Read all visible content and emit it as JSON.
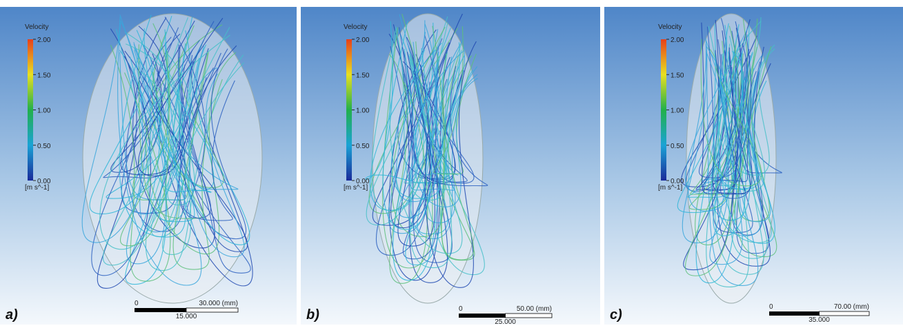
{
  "panels": [
    {
      "label": "a)",
      "legend": {
        "title": "Velocity",
        "ticks": [
          "2.00",
          "1.50",
          "1.00",
          "0.50",
          "0.00"
        ],
        "unit": "[m s^-1]"
      },
      "scale_bar": {
        "start": "0",
        "end": "30.000 (mm)",
        "mid": "15.000"
      }
    },
    {
      "label": "b)",
      "legend": {
        "title": "Velocity",
        "ticks": [
          "2.00",
          "1.50",
          "1.00",
          "0.50",
          "0.00"
        ],
        "unit": "[m s^-1]"
      },
      "scale_bar": {
        "start": "0",
        "end": "50.00 (mm)",
        "mid": "25.000"
      }
    },
    {
      "label": "c)",
      "legend": {
        "title": "Velocity",
        "ticks": [
          "2.00",
          "1.50",
          "1.00",
          "0.50",
          "0.00"
        ],
        "unit": "[m s^-1]"
      },
      "scale_bar": {
        "start": "0",
        "end": "70.00 (mm)",
        "mid": "35.000"
      }
    }
  ]
}
